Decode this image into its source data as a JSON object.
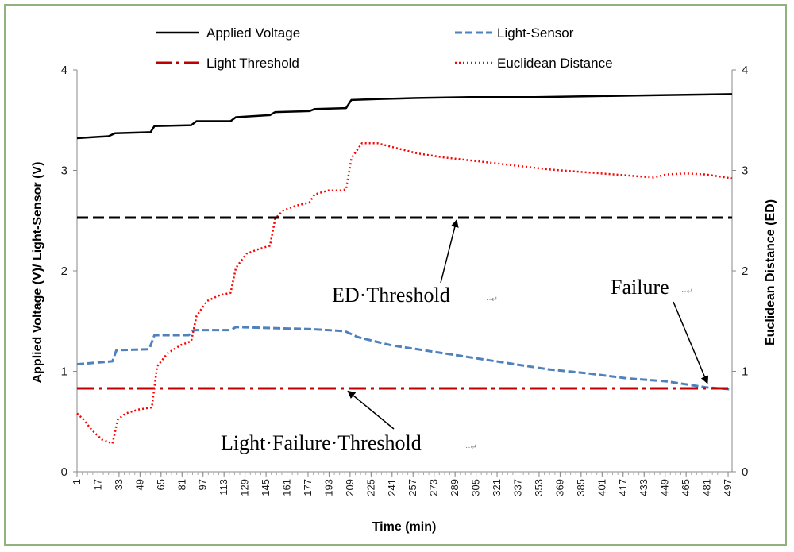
{
  "chart_data": {
    "type": "line",
    "title": "",
    "xlabel": "Time (min)",
    "ylabel": "Applied Voltage (V)/ Light-Sensor (V)",
    "y2label": "Euclidean Distance (ED)",
    "ylim": [
      0,
      4
    ],
    "y2lim": [
      0,
      4
    ],
    "yticks": [
      0,
      1,
      2,
      3,
      4
    ],
    "y2ticks": [
      0,
      1,
      2,
      3,
      4
    ],
    "xlim": [
      1,
      500
    ],
    "xticks": [
      1,
      17,
      33,
      49,
      65,
      81,
      97,
      113,
      129,
      145,
      161,
      177,
      193,
      209,
      225,
      241,
      257,
      273,
      289,
      305,
      321,
      337,
      353,
      369,
      385,
      401,
      417,
      433,
      449,
      465,
      481,
      497
    ],
    "legend": {
      "position": "top"
    },
    "series": [
      {
        "name": "Applied Voltage",
        "color": "#000000",
        "style": "solid",
        "axis": "left",
        "x": [
          1,
          25,
          30,
          57,
          60,
          88,
          92,
          118,
          122,
          148,
          152,
          178,
          182,
          206,
          210,
          230,
          260,
          300,
          350,
          400,
          450,
          500
        ],
        "y": [
          3.32,
          3.34,
          3.37,
          3.38,
          3.44,
          3.45,
          3.49,
          3.49,
          3.53,
          3.55,
          3.58,
          3.59,
          3.61,
          3.62,
          3.7,
          3.71,
          3.72,
          3.73,
          3.73,
          3.74,
          3.75,
          3.76
        ]
      },
      {
        "name": "Light-Sensor",
        "color": "#4f81bd",
        "style": "dashed",
        "axis": "left",
        "x": [
          1,
          28,
          31,
          56,
          60,
          86,
          90,
          118,
          122,
          150,
          180,
          205,
          215,
          240,
          270,
          300,
          330,
          360,
          390,
          420,
          450,
          480,
          500
        ],
        "y": [
          1.07,
          1.1,
          1.21,
          1.22,
          1.36,
          1.36,
          1.41,
          1.41,
          1.44,
          1.43,
          1.42,
          1.4,
          1.34,
          1.26,
          1.2,
          1.14,
          1.08,
          1.02,
          0.98,
          0.93,
          0.9,
          0.84,
          0.82
        ]
      },
      {
        "name": "Light Threshold",
        "color": "#c00000",
        "style": "dashdot",
        "axis": "left",
        "x": [
          1,
          500
        ],
        "y": [
          0.83,
          0.83
        ]
      },
      {
        "name": "Euclidean Distance",
        "color": "#ff0000",
        "style": "dotted",
        "axis": "right",
        "x": [
          1,
          6,
          12,
          20,
          28,
          32,
          38,
          48,
          58,
          62,
          70,
          80,
          88,
          92,
          100,
          110,
          118,
          122,
          130,
          140,
          148,
          152,
          158,
          168,
          178,
          182,
          192,
          202,
          206,
          210,
          218,
          230,
          245,
          260,
          280,
          300,
          320,
          340,
          360,
          380,
          400,
          420,
          440,
          450,
          465,
          480,
          500
        ],
        "y": [
          0.58,
          0.52,
          0.42,
          0.32,
          0.28,
          0.52,
          0.58,
          0.62,
          0.64,
          1.05,
          1.18,
          1.26,
          1.3,
          1.55,
          1.7,
          1.76,
          1.78,
          2.03,
          2.17,
          2.22,
          2.25,
          2.52,
          2.6,
          2.65,
          2.68,
          2.76,
          2.8,
          2.8,
          2.81,
          3.12,
          3.27,
          3.27,
          3.22,
          3.17,
          3.13,
          3.1,
          3.07,
          3.04,
          3.01,
          2.99,
          2.97,
          2.95,
          2.93,
          2.96,
          2.97,
          2.96,
          2.92
        ]
      },
      {
        "name": "ED Threshold",
        "color": "#000000",
        "style": "longdash",
        "axis": "right",
        "x": [
          1,
          500
        ],
        "y": [
          2.53,
          2.53
        ]
      }
    ],
    "annotations": [
      {
        "text": "ED·Threshold",
        "mark": "··↵",
        "x": 290,
        "y": 2.53,
        "axis": "left"
      },
      {
        "text": "Failure",
        "mark": "··↵",
        "x": 481,
        "y": 0.84,
        "axis": "left"
      },
      {
        "text": "Light·Failure·Threshold",
        "mark": "··↵",
        "x": 209,
        "y": 0.83,
        "axis": "left"
      }
    ]
  }
}
